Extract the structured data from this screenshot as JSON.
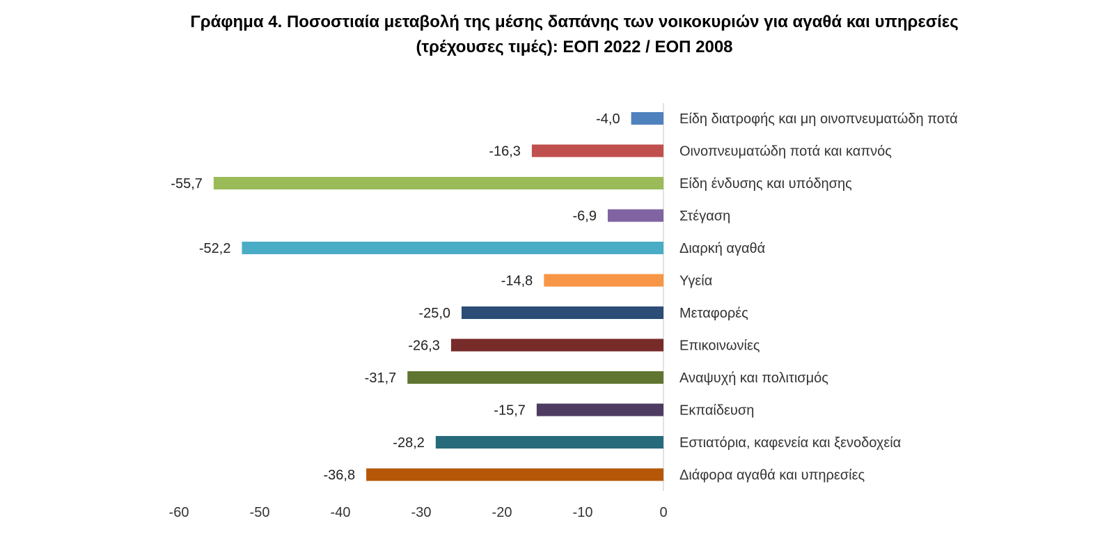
{
  "chart_data": {
    "type": "bar",
    "orientation": "horizontal",
    "title": "Γράφημα 4. Ποσοστιαία μεταβολή της μέσης δαπάνης των νοικοκυριών για αγαθά και υπηρεσίες",
    "subtitle": "(τρέχουσες τιμές): ΕΟΠ 2022 / ΕΟΠ 2008",
    "xlabel": "",
    "ylabel": "",
    "xlim": [
      -60,
      0
    ],
    "xticks": [
      -60,
      -50,
      -40,
      -30,
      -20,
      -10,
      0
    ],
    "grid": false,
    "legend": "none",
    "categories": [
      "Είδη διατροφής και μη οινοπνευματώδη ποτά",
      "Οινοπνευματώδη ποτά και καπνός",
      "Είδη ένδυσης και υπόδησης",
      "Στέγαση",
      "Διαρκή αγαθά",
      "Υγεία",
      "Μεταφορές",
      "Επικοινωνίες",
      "Αναψυχή και πολιτισμός",
      "Εκπαίδευση",
      "Εστιατόρια, καφενεία  και ξενοδοχεία",
      "Διάφορα αγαθά και υπηρεσίες"
    ],
    "values": [
      -4.0,
      -16.3,
      -55.7,
      -6.9,
      -52.2,
      -14.8,
      -25.0,
      -26.3,
      -31.7,
      -15.7,
      -28.2,
      -36.8
    ],
    "value_labels": [
      "-4,0",
      "-16,3",
      "-55,7",
      "-6,9",
      "-52,2",
      "-14,8",
      "-25,0",
      "-26,3",
      "-31,7",
      "-15,7",
      "-28,2",
      "-36,8"
    ],
    "colors": [
      "#4f81bd",
      "#c0504d",
      "#9bbb59",
      "#8064a2",
      "#4bacc6",
      "#f79646",
      "#2c4d75",
      "#772c2a",
      "#5f7530",
      "#4d3b62",
      "#276a7c",
      "#b65708"
    ]
  }
}
